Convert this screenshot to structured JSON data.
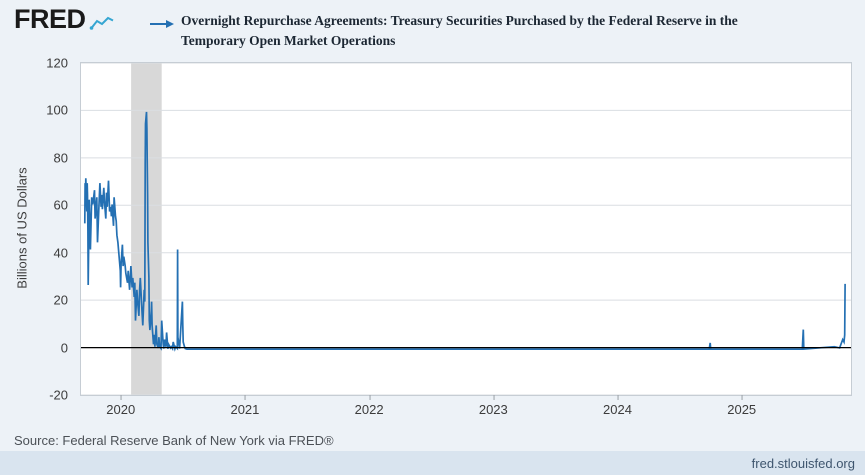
{
  "colors": {
    "page_bg": "#edf2f7",
    "plot_bg": "#ffffff",
    "plot_border": "#c6cdd4",
    "grid": "#dadee2",
    "recession_band": "#d8d8d8",
    "line": "#2470b3",
    "zero_line": "#000000",
    "title_text": "#1c2733",
    "axis_text": "#3c3c3c",
    "source_text": "#4c5157",
    "footer_bg": "#d9e4ef",
    "footer_text": "#3e556e",
    "logo_icon": "#35a6d2"
  },
  "header": {
    "logo_text": "FRED",
    "series_title": "Overnight Repurchase Agreements: Treasury Securities Purchased by the Federal Reserve in the Temporary Open Market Operations"
  },
  "chart_data": {
    "type": "line",
    "title": "Overnight Repurchase Agreements: Treasury Securities Purchased by the Federal Reserve in the Temporary Open Market Operations",
    "xlabel": "",
    "ylabel": "Billions of US Dollars",
    "ylim": [
      -20,
      120
    ],
    "yticks": [
      120,
      100,
      80,
      60,
      40,
      20,
      0,
      -20
    ],
    "xticks": [
      "2020",
      "2021",
      "2022",
      "2023",
      "2024",
      "2025"
    ],
    "xlim_decimal": [
      2019.68,
      2025.88
    ],
    "grid": "horizontal",
    "legend_position": "none",
    "recession_bands": [
      {
        "start": "2020-02-01",
        "end": "2020-04-30"
      }
    ],
    "series": [
      {
        "name": "Overnight Repurchase Agreements: Treasury Securities Purchased by the Federal Reserve in the Temporary Open Market Operations",
        "color": "#2470b3",
        "units": "Billions of US Dollars",
        "points": [
          [
            "2019-09-17",
            53
          ],
          [
            "2019-09-18",
            70
          ],
          [
            "2019-09-19",
            64
          ],
          [
            "2019-09-20",
            72
          ],
          [
            "2019-09-23",
            58
          ],
          [
            "2019-09-24",
            70
          ],
          [
            "2019-09-25",
            65
          ],
          [
            "2019-09-26",
            50
          ],
          [
            "2019-09-27",
            27
          ],
          [
            "2019-09-30",
            63
          ],
          [
            "2019-10-01",
            55
          ],
          [
            "2019-10-03",
            42
          ],
          [
            "2019-10-07",
            64
          ],
          [
            "2019-10-08",
            62
          ],
          [
            "2019-10-10",
            61
          ],
          [
            "2019-10-15",
            67
          ],
          [
            "2019-10-17",
            55
          ],
          [
            "2019-10-22",
            64
          ],
          [
            "2019-10-24",
            45
          ],
          [
            "2019-10-29",
            63
          ],
          [
            "2019-10-31",
            70
          ],
          [
            "2019-11-04",
            60
          ],
          [
            "2019-11-06",
            65
          ],
          [
            "2019-11-08",
            59
          ],
          [
            "2019-11-12",
            68
          ],
          [
            "2019-11-14",
            62
          ],
          [
            "2019-11-18",
            55
          ],
          [
            "2019-11-20",
            66
          ],
          [
            "2019-11-22",
            60
          ],
          [
            "2019-11-26",
            71
          ],
          [
            "2019-11-29",
            58
          ],
          [
            "2019-12-02",
            60
          ],
          [
            "2019-12-04",
            56
          ],
          [
            "2019-12-06",
            61
          ],
          [
            "2019-12-10",
            52
          ],
          [
            "2019-12-12",
            64
          ],
          [
            "2019-12-16",
            56
          ],
          [
            "2019-12-18",
            54
          ],
          [
            "2019-12-20",
            48
          ],
          [
            "2019-12-23",
            45
          ],
          [
            "2019-12-26",
            40
          ],
          [
            "2019-12-30",
            33
          ],
          [
            "2019-12-31",
            26
          ],
          [
            "2020-01-02",
            36
          ],
          [
            "2020-01-06",
            44
          ],
          [
            "2020-01-08",
            35
          ],
          [
            "2020-01-10",
            39
          ],
          [
            "2020-01-14",
            35
          ],
          [
            "2020-01-16",
            32
          ],
          [
            "2020-01-21",
            28
          ],
          [
            "2020-01-23",
            33
          ],
          [
            "2020-01-27",
            25
          ],
          [
            "2020-01-29",
            30
          ],
          [
            "2020-01-31",
            35
          ],
          [
            "2020-02-04",
            26
          ],
          [
            "2020-02-06",
            30
          ],
          [
            "2020-02-10",
            22
          ],
          [
            "2020-02-12",
            28
          ],
          [
            "2020-02-14",
            12
          ],
          [
            "2020-02-18",
            25
          ],
          [
            "2020-02-20",
            20
          ],
          [
            "2020-02-24",
            14
          ],
          [
            "2020-02-26",
            25
          ],
          [
            "2020-02-28",
            30
          ],
          [
            "2020-03-03",
            15
          ],
          [
            "2020-03-05",
            10
          ],
          [
            "2020-03-09",
            25
          ],
          [
            "2020-03-11",
            20
          ],
          [
            "2020-03-12",
            78
          ],
          [
            "2020-03-13",
            95
          ],
          [
            "2020-03-16",
            100
          ],
          [
            "2020-03-17",
            93
          ],
          [
            "2020-03-18",
            80
          ],
          [
            "2020-03-19",
            65
          ],
          [
            "2020-03-20",
            45
          ],
          [
            "2020-03-23",
            30
          ],
          [
            "2020-03-24",
            12
          ],
          [
            "2020-03-26",
            8
          ],
          [
            "2020-03-30",
            16
          ],
          [
            "2020-03-31",
            20
          ],
          [
            "2020-04-02",
            10
          ],
          [
            "2020-04-06",
            2
          ],
          [
            "2020-04-08",
            6
          ],
          [
            "2020-04-10",
            1
          ],
          [
            "2020-04-14",
            10
          ],
          [
            "2020-04-16",
            2
          ],
          [
            "2020-04-20",
            0.5
          ],
          [
            "2020-04-22",
            5
          ],
          [
            "2020-04-24",
            1
          ],
          [
            "2020-04-28",
            0.3
          ],
          [
            "2020-04-30",
            12
          ],
          [
            "2020-05-04",
            2
          ],
          [
            "2020-05-06",
            0.2
          ],
          [
            "2020-05-08",
            4
          ],
          [
            "2020-05-12",
            1
          ],
          [
            "2020-05-14",
            7
          ],
          [
            "2020-05-18",
            0.1
          ],
          [
            "2020-05-20",
            2
          ],
          [
            "2020-05-26",
            0.5
          ],
          [
            "2020-05-28",
            1
          ],
          [
            "2020-06-01",
            0.2
          ],
          [
            "2020-06-03",
            3
          ],
          [
            "2020-06-08",
            0.1
          ],
          [
            "2020-06-10",
            1
          ],
          [
            "2020-06-15",
            0.3
          ],
          [
            "2020-06-16",
            42
          ],
          [
            "2020-06-17",
            5
          ],
          [
            "2020-06-22",
            0.2
          ],
          [
            "2020-06-25",
            8
          ],
          [
            "2020-06-30",
            20
          ],
          [
            "2020-07-01",
            10
          ],
          [
            "2020-07-02",
            3
          ],
          [
            "2020-07-06",
            1
          ],
          [
            "2020-07-08",
            0.2
          ],
          [
            "2020-07-10",
            0.1
          ],
          [
            "2020-07-13",
            0
          ],
          [
            "2020-09-30",
            0
          ],
          [
            "2020-12-31",
            0
          ],
          [
            "2021-06-30",
            0
          ],
          [
            "2021-12-31",
            0
          ],
          [
            "2022-06-30",
            0
          ],
          [
            "2022-12-30",
            0
          ],
          [
            "2023-06-30",
            0
          ],
          [
            "2023-12-29",
            0
          ],
          [
            "2024-06-28",
            0
          ],
          [
            "2024-09-27",
            0
          ],
          [
            "2024-09-30",
            2.6
          ],
          [
            "2024-10-01",
            0
          ],
          [
            "2025-03-31",
            0
          ],
          [
            "2025-06-27",
            0
          ],
          [
            "2025-06-30",
            8.2
          ],
          [
            "2025-07-01",
            0
          ],
          [
            "2025-09-30",
            1
          ],
          [
            "2025-10-15",
            0.5
          ],
          [
            "2025-10-24",
            4
          ],
          [
            "2025-10-28",
            3
          ],
          [
            "2025-10-30",
            6
          ],
          [
            "2025-10-31",
            27.5
          ]
        ]
      }
    ]
  },
  "footer": {
    "source": "Source: Federal Reserve Bank of New York via FRED®",
    "link": "fred.stlouisfed.org"
  }
}
